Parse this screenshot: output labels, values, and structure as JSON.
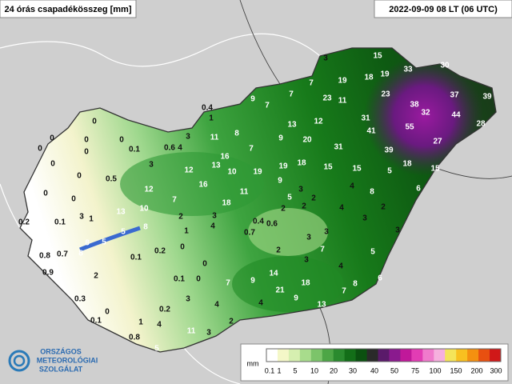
{
  "header": {
    "title": "24 órás csapadékösszeg [mm]",
    "timestamp": "2022-09-09 08 LT (06 UTC)"
  },
  "logo": {
    "lines": [
      "ORSZÁGOS",
      "METEOROLÓGIAI",
      "SZOLGÁLAT"
    ]
  },
  "stations": [
    3,
    15,
    33,
    30,
    19,
    18,
    19,
    37,
    39,
    7,
    23,
    38,
    32,
    44,
    28,
    7,
    23,
    11,
    31,
    55,
    41,
    27,
    9,
    7,
    0.4,
    1,
    13,
    12,
    11,
    8,
    9,
    20,
    31,
    39,
    3,
    0.6,
    4,
    7,
    0.1,
    0,
    0,
    0,
    0,
    0,
    0,
    16,
    13,
    10,
    19,
    19,
    18,
    15,
    15,
    5,
    18,
    15,
    3,
    12,
    9,
    0.5,
    0,
    0,
    0,
    12,
    16,
    11,
    3,
    2,
    4,
    8,
    6,
    0,
    7,
    18,
    5,
    2,
    4,
    2,
    1,
    13,
    10,
    2,
    3,
    2,
    0.2,
    0.1,
    3,
    5,
    8,
    4,
    0.4,
    0.6,
    3,
    5,
    8,
    1,
    0.7,
    3,
    3,
    3,
    0,
    8,
    0.8,
    0.7,
    0.1,
    0.2,
    2,
    7,
    5,
    0.9,
    2,
    0,
    3,
    4,
    0.1,
    0,
    7,
    9,
    14,
    18,
    8,
    6,
    0.3,
    3,
    21,
    9,
    7,
    0,
    0.2,
    4,
    4,
    13,
    0.1,
    1,
    2,
    4,
    11,
    3,
    0.8,
    5
  ],
  "legend": {
    "unit": "mm",
    "labels": [
      0.1,
      1,
      5,
      10,
      20,
      30,
      40,
      50,
      75,
      100,
      150,
      200,
      300
    ],
    "colors": [
      "#ffffff",
      "#f4f7c8",
      "#d6efb0",
      "#a8dc8c",
      "#7cc46a",
      "#4da646",
      "#2a8a2e",
      "#136e18",
      "#0b5010",
      "#2a2a2a",
      "#5a1a6a",
      "#8a1a8e",
      "#c0189a",
      "#e23cb4",
      "#f07acc",
      "#f6b0de",
      "#f4e45a",
      "#f8c020",
      "#f49010",
      "#e85010",
      "#d01818"
    ]
  }
}
